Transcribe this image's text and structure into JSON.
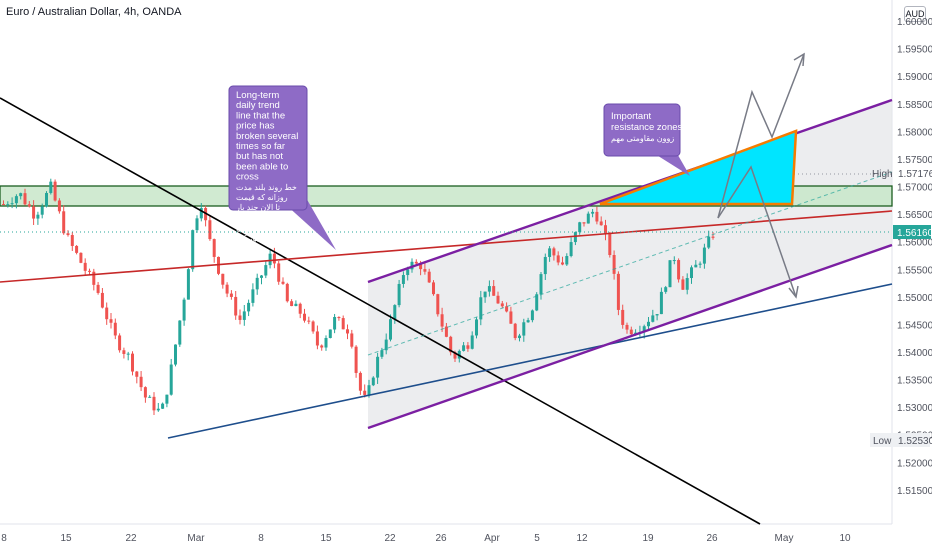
{
  "header": {
    "title": "Euro / Australian Dollar, 4h, OANDA",
    "currency": "AUD"
  },
  "colors": {
    "up": "#26a69a",
    "down": "#ef5350",
    "channel": "#7b1fa2",
    "support": "#1e4e8c",
    "resistance_line": "#c62828",
    "downtrend": "#000000",
    "zone_fill": "#c8e6c9",
    "zone_border": "#1b5e20",
    "triangle_fill": "#00e5ff",
    "triangle_border": "#f57c00",
    "note_bg": "#8e6bc6"
  },
  "chart_data": {
    "type": "candlestick",
    "symbol": "EURAUD",
    "interval": "4h",
    "source": "OANDA",
    "y_axis": {
      "ylim": [
        1.509,
        1.604
      ],
      "ticks": [
        "1.51500",
        "1.52000",
        "1.52500",
        "1.53000",
        "1.53500",
        "1.54000",
        "1.54500",
        "1.55000",
        "1.55500",
        "1.56000",
        "1.56500",
        "1.57000",
        "1.57500",
        "1.58000",
        "1.58500",
        "1.59000",
        "1.59500",
        "1.60000"
      ]
    },
    "x_axis": {
      "labels": [
        "8",
        "15",
        "22",
        "Mar",
        "8",
        "15",
        "22",
        "26",
        "Apr",
        "5",
        "12",
        "19",
        "26",
        "May",
        "10"
      ]
    },
    "price_path": [
      {
        "t": 0,
        "p": 1.567
      },
      {
        "t": 2,
        "p": 1.569
      },
      {
        "t": 4,
        "p": 1.565
      },
      {
        "t": 6,
        "p": 1.57
      },
      {
        "t": 8,
        "p": 1.561
      },
      {
        "t": 10,
        "p": 1.556
      },
      {
        "t": 12,
        "p": 1.551
      },
      {
        "t": 14,
        "p": 1.543
      },
      {
        "t": 16,
        "p": 1.539
      },
      {
        "t": 18,
        "p": 1.532
      },
      {
        "t": 20,
        "p": 1.529
      },
      {
        "t": 21,
        "p": 1.535
      },
      {
        "t": 23,
        "p": 1.551
      },
      {
        "t": 24,
        "p": 1.562
      },
      {
        "t": 25,
        "p": 1.568
      },
      {
        "t": 26,
        "p": 1.561
      },
      {
        "t": 28,
        "p": 1.552
      },
      {
        "t": 30,
        "p": 1.546
      },
      {
        "t": 32,
        "p": 1.552
      },
      {
        "t": 34,
        "p": 1.558
      },
      {
        "t": 36,
        "p": 1.549
      },
      {
        "t": 38,
        "p": 1.547
      },
      {
        "t": 40,
        "p": 1.541
      },
      {
        "t": 42,
        "p": 1.546
      },
      {
        "t": 44,
        "p": 1.544
      },
      {
        "t": 45,
        "p": 1.534
      },
      {
        "t": 46,
        "p": 1.531
      },
      {
        "t": 47,
        "p": 1.537
      },
      {
        "t": 49,
        "p": 1.545
      },
      {
        "t": 51,
        "p": 1.556
      },
      {
        "t": 53,
        "p": 1.556
      },
      {
        "t": 55,
        "p": 1.548
      },
      {
        "t": 57,
        "p": 1.539
      },
      {
        "t": 59,
        "p": 1.542
      },
      {
        "t": 61,
        "p": 1.552
      },
      {
        "t": 63,
        "p": 1.549
      },
      {
        "t": 65,
        "p": 1.543
      },
      {
        "t": 67,
        "p": 1.548
      },
      {
        "t": 69,
        "p": 1.559
      },
      {
        "t": 71,
        "p": 1.556
      },
      {
        "t": 73,
        "p": 1.563
      },
      {
        "t": 75,
        "p": 1.566
      },
      {
        "t": 77,
        "p": 1.558
      },
      {
        "t": 78,
        "p": 1.548
      },
      {
        "t": 79,
        "p": 1.544
      },
      {
        "t": 81,
        "p": 1.545
      },
      {
        "t": 83,
        "p": 1.548
      },
      {
        "t": 85,
        "p": 1.558
      },
      {
        "t": 86,
        "p": 1.552
      },
      {
        "t": 88,
        "p": 1.556
      },
      {
        "t": 90,
        "p": 1.5616
      }
    ],
    "last_price": "1.56160",
    "high": {
      "label": "High",
      "value": "1.57176"
    },
    "low": {
      "label": "Low",
      "value": "1.52530"
    },
    "annotations": [
      {
        "text_en": "Long-term daily trend line that the price has broken several times so far but has not been able to cross",
        "text_fa": "خط روند بلند مدت روزانه که قیمت تا الان چند بار شکسته ولی نتوانسته از آن عبور کند"
      },
      {
        "text_en": "Important resistance zones",
        "text_fa": "زوون مقاومتی مهم"
      }
    ]
  }
}
